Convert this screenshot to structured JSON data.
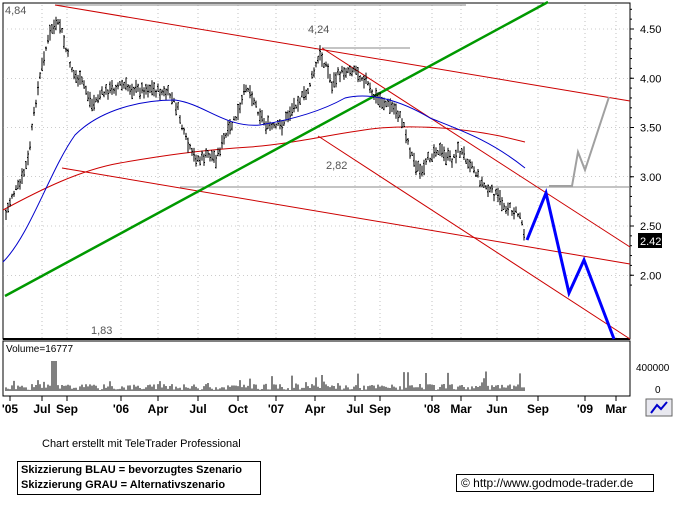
{
  "chart_data": {
    "type": "line",
    "price_labels": {
      "high": "4,84",
      "mid_high": "4,24",
      "mid": "2,82",
      "low": "1,83"
    },
    "last_price": "2.42",
    "yaxis_ticks": [
      "4.50",
      "4.00",
      "3.50",
      "3.00",
      "2.50",
      "2.00"
    ],
    "ylim": [
      1.83,
      4.84
    ],
    "volume_label": "Volume=16777",
    "volume_ticks": [
      "400000",
      "0"
    ],
    "xaxis_ticks": [
      "'05",
      "Jul",
      "Sep",
      "'06",
      "Apr",
      "Jul",
      "Oct",
      "'07",
      "Apr",
      "Jul",
      "Sep",
      "'08",
      "Mar",
      "Jun",
      "Sep",
      "'09",
      "Mar"
    ],
    "series": [
      {
        "color": "#000000",
        "style": "ohlc-bars"
      },
      {
        "color": "#0000cc",
        "style": "moving-average"
      },
      {
        "color": "#cc0000",
        "style": "moving-average"
      },
      {
        "color": "#008800",
        "style": "trendline"
      },
      {
        "color": "#cc0000",
        "style": "trendlines"
      },
      {
        "color": "#0000ff",
        "style": "scenario-projection"
      },
      {
        "color": "#a0a0a0",
        "style": "scenario-projection"
      }
    ]
  },
  "footer": {
    "credit": "Chart erstellt mit TeleTrader Professional",
    "legend_blue": "Skizzierung BLAU = bevorzugtes Szenario",
    "legend_gray": "Skizzierung GRAU = Alternativszenario",
    "url": "© http://www.godmode-trader.de"
  },
  "colors": {
    "trend_green": "#009900",
    "trend_red": "#cc0000",
    "ma_blue": "#0000cc",
    "scenario_blue": "#0000ff",
    "scenario_gray": "#a0a0a0"
  }
}
